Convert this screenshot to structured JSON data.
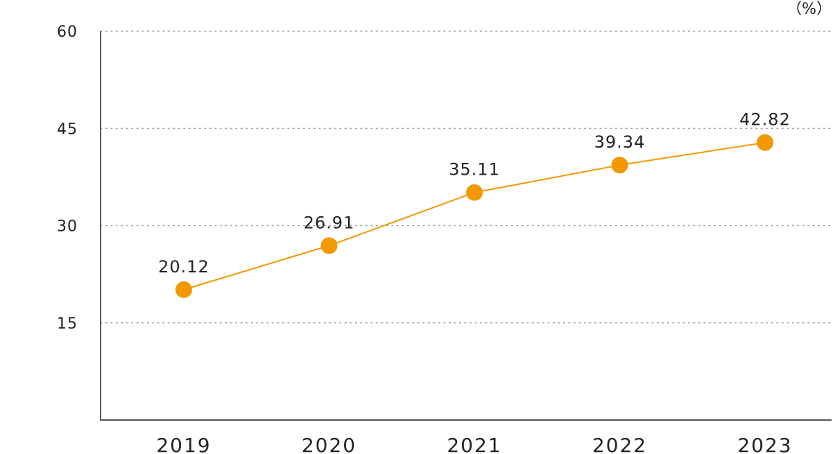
{
  "chart_data": {
    "type": "line",
    "unit_label": "（%）",
    "categories": [
      "2019",
      "2020",
      "2021",
      "2022",
      "2023"
    ],
    "series": [
      {
        "values": [
          20.12,
          26.91,
          35.11,
          39.34,
          42.82
        ],
        "value_labels": [
          "20.12",
          "26.91",
          "35.11",
          "39.34",
          "42.82"
        ],
        "color": "#f39800"
      }
    ],
    "yticks": [
      15,
      30,
      45,
      60
    ],
    "ylim": [
      0,
      60
    ],
    "grid": true,
    "grid_style": "dotted",
    "colors": {
      "line": "#f39800",
      "grid": "#9a9a9a",
      "axis": "#555555",
      "text": "#222222"
    }
  }
}
